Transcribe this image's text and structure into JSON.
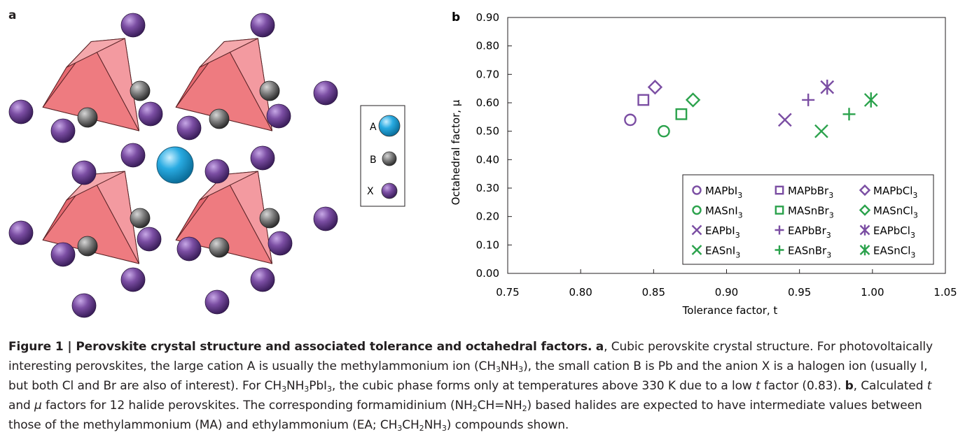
{
  "panel_a": {
    "letter": "a",
    "legend": [
      {
        "label": "A",
        "color": "#29abe2"
      },
      {
        "label": "B",
        "color": "#777777"
      },
      {
        "label": "X",
        "color": "#7b4ea3"
      }
    ]
  },
  "panel_b": {
    "letter": "b"
  },
  "chart_data": {
    "type": "scatter",
    "xlabel": "Tolerance factor, t",
    "ylabel": "Octahedral factor, μ",
    "xlim": [
      0.75,
      1.05
    ],
    "ylim": [
      0.0,
      0.9
    ],
    "xticks": [
      "0.75",
      "0.80",
      "0.85",
      "0.90",
      "0.95",
      "1.00",
      "1.05"
    ],
    "yticks": [
      "0.00",
      "0.10",
      "0.20",
      "0.30",
      "0.40",
      "0.50",
      "0.60",
      "0.70",
      "0.80",
      "0.90"
    ],
    "grid": false,
    "legend_position": "bottom-right",
    "series": [
      {
        "name": "MAPbI3",
        "sub": [
          "MAPbI",
          "3"
        ],
        "marker": "circle",
        "color": "#7b4ea3",
        "x": 0.834,
        "y": 0.54
      },
      {
        "name": "MASnI3",
        "sub": [
          "MASnI",
          "3"
        ],
        "marker": "circle",
        "color": "#2ba24c",
        "x": 0.857,
        "y": 0.5
      },
      {
        "name": "EAPbI3",
        "sub": [
          "EAPbI",
          "3"
        ],
        "marker": "x",
        "color": "#7b4ea3",
        "x": 0.94,
        "y": 0.54
      },
      {
        "name": "EASnI3",
        "sub": [
          "EASnI",
          "3"
        ],
        "marker": "x",
        "color": "#2ba24c",
        "x": 0.965,
        "y": 0.5
      },
      {
        "name": "MAPbBr3",
        "sub": [
          "MAPbBr",
          "3"
        ],
        "marker": "square",
        "color": "#7b4ea3",
        "x": 0.843,
        "y": 0.61
      },
      {
        "name": "MASnBr3",
        "sub": [
          "MASnBr",
          "3"
        ],
        "marker": "square",
        "color": "#2ba24c",
        "x": 0.869,
        "y": 0.56
      },
      {
        "name": "EAPbBr3",
        "sub": [
          "EAPbBr",
          "3"
        ],
        "marker": "plus",
        "color": "#7b4ea3",
        "x": 0.956,
        "y": 0.61
      },
      {
        "name": "EASnBr3",
        "sub": [
          "EASnBr",
          "3"
        ],
        "marker": "plus",
        "color": "#2ba24c",
        "x": 0.984,
        "y": 0.56
      },
      {
        "name": "MAPbCl3",
        "sub": [
          "MAPbCl",
          "3"
        ],
        "marker": "diamond",
        "color": "#7b4ea3",
        "x": 0.851,
        "y": 0.655
      },
      {
        "name": "MASnCl3",
        "sub": [
          "MASnCl",
          "3"
        ],
        "marker": "diamond",
        "color": "#2ba24c",
        "x": 0.877,
        "y": 0.61
      },
      {
        "name": "EAPbCl3",
        "sub": [
          "EAPbCl",
          "3"
        ],
        "marker": "asterisk",
        "color": "#7b4ea3",
        "x": 0.969,
        "y": 0.655
      },
      {
        "name": "EASnCl3",
        "sub": [
          "EASnCl",
          "3"
        ],
        "marker": "asterisk",
        "color": "#2ba24c",
        "x": 0.999,
        "y": 0.61
      }
    ]
  },
  "caption": {
    "label": "Figure 1 | Perovskite crystal structure and associated tolerance and octahedral factors.",
    "a_letter": "a",
    "text_1": ", Cubic perovskite crystal structure. For photovoltaically interesting perovskites, the large cation A is usually the methylammonium ion (CH",
    "sub_3a": "3",
    "text_nh": "NH",
    "sub_3b": "3",
    "text_2": "), the small cation B is Pb and the anion X is a halogen ion (usually I, but both Cl and Br are also of interest). For CH",
    "sub_3c": "3",
    "text_nh2": "NH",
    "sub_3d": "3",
    "text_pbi": "PbI",
    "sub_3e": "3",
    "text_3": ", the cubic phase forms only at temperatures above 330 K due to a low ",
    "t_italic": "t",
    "text_4": " factor (0.83).",
    "b_letter": "b",
    "text_5": ", Calculated ",
    "t_italic2": "t",
    "text_6": " and ",
    "mu_italic": "μ",
    "text_7": " factors for 12 halide perovskites. The corresponding formamidinium (NH",
    "sub_2a": "2",
    "text_8": "CH=NH",
    "sub_2b": "2",
    "text_9": ") based halides are expected to have intermediate values between those of the methylammonium (MA) and ethylammonium (EA; CH",
    "sub_3f": "3",
    "text_10": "CH",
    "sub_2c": "2",
    "text_11": "NH",
    "sub_3g": "3",
    "text_12": ") compounds shown."
  }
}
